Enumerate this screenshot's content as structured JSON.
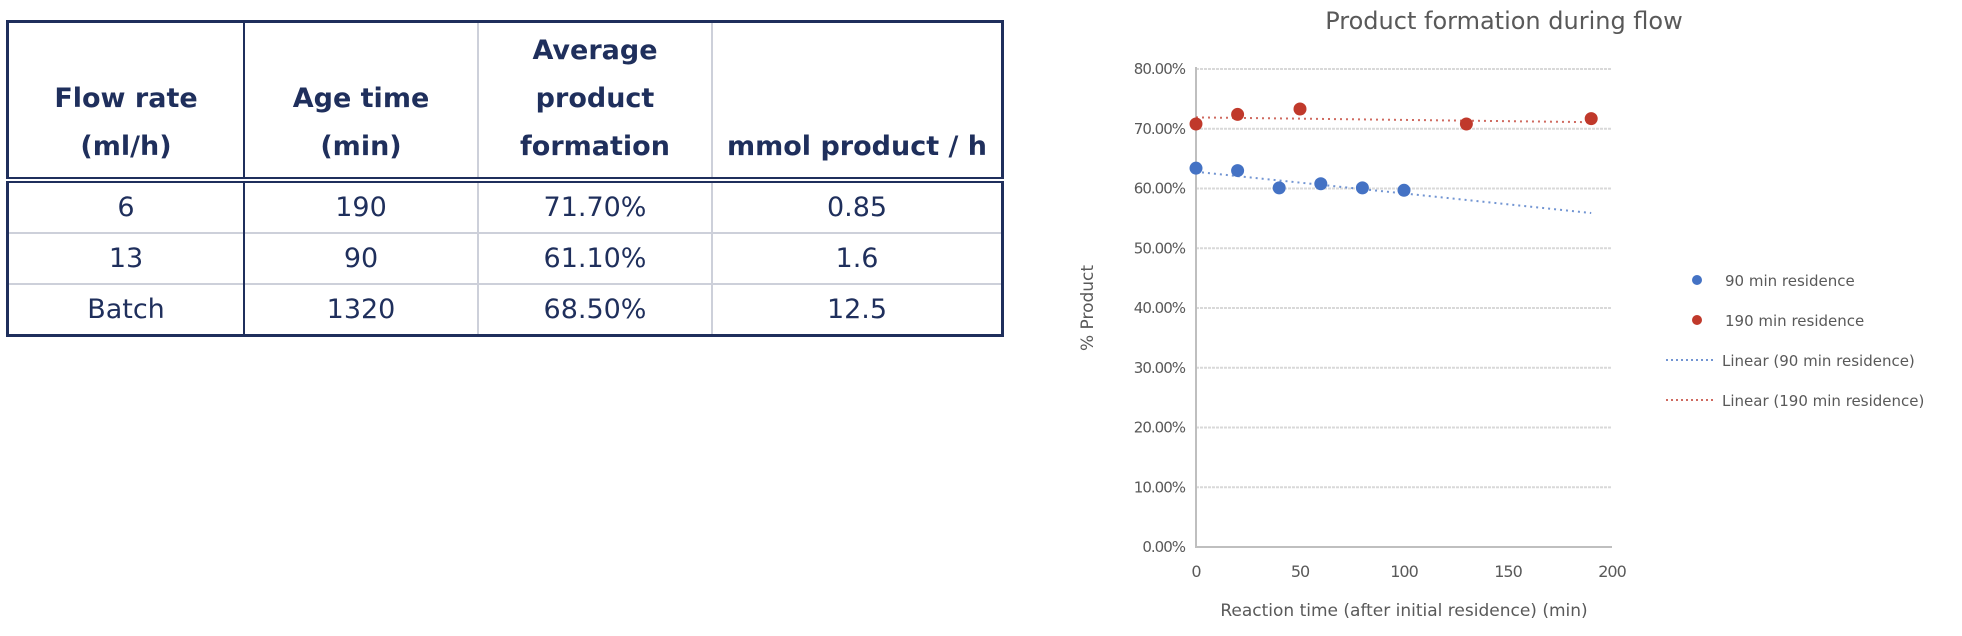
{
  "table": {
    "headers": [
      "Flow rate\n(ml/h)",
      "Age time\n(min)",
      "Average\nproduct\nformation",
      "mmol product / h"
    ],
    "header_lines": [
      [
        "Flow rate",
        "(ml/h)"
      ],
      [
        "Age time",
        "(min)"
      ],
      [
        "Average",
        "product",
        "formation"
      ],
      [
        "mmol product / h"
      ]
    ],
    "rows": [
      [
        "6",
        "190",
        "71.70%",
        "0.85"
      ],
      [
        "13",
        "90",
        "61.10%",
        "1.6"
      ],
      [
        "Batch",
        "1320",
        "68.50%",
        "12.5"
      ]
    ],
    "colors": {
      "text": "#1f2f5c",
      "border": "#1f2f5c",
      "inner_border": "#cdd0da"
    }
  },
  "chart_data": {
    "type": "scatter",
    "title": "Product formation during flow",
    "xlabel": "Reaction time (after initial residence)  (min)",
    "ylabel": "% Product",
    "xlim": [
      0,
      200
    ],
    "ylim": [
      0,
      0.8
    ],
    "xticks": [
      "0",
      "50",
      "100",
      "150",
      "200"
    ],
    "yticks": [
      "0.00%",
      "10.00%",
      "20.00%",
      "30.00%",
      "40.00%",
      "50.00%",
      "60.00%",
      "70.00%",
      "80.00%"
    ],
    "grid": true,
    "legend_position": "right",
    "series": [
      {
        "name": "90 min residence",
        "color": "#4472c4",
        "x": [
          0,
          20,
          40,
          60,
          80,
          100
        ],
        "y": [
          0.634,
          0.63,
          0.601,
          0.608,
          0.601,
          0.597
        ]
      },
      {
        "name": "190 min residence",
        "color": "#c0392b",
        "x": [
          0,
          20,
          50,
          130,
          190
        ],
        "y": [
          0.708,
          0.724,
          0.733,
          0.708,
          0.717
        ]
      }
    ],
    "trendlines": [
      {
        "name": "Linear (90 min residence)",
        "color": "#4472c4",
        "x": [
          0,
          190
        ],
        "y": [
          0.628,
          0.559
        ]
      },
      {
        "name": "Linear (190 min residence)",
        "color": "#c0392b",
        "x": [
          0,
          190
        ],
        "y": [
          0.719,
          0.711
        ]
      }
    ],
    "legend": [
      "90 min residence",
      "190 min residence",
      "Linear (90 min residence)",
      "Linear (190 min residence)"
    ]
  }
}
